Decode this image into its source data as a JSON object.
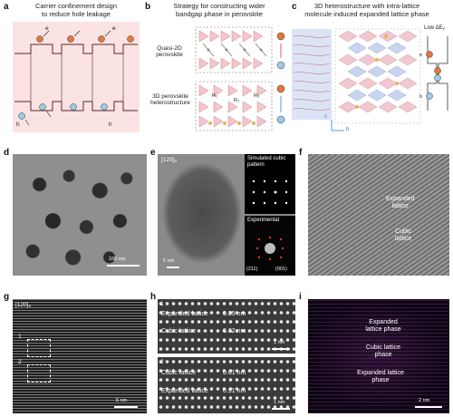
{
  "panels": {
    "a": {
      "letter": "a",
      "title_l1": "Carrier confinement design",
      "title_l2": "to reduce hole leakage",
      "e": "e",
      "h": "h"
    },
    "b": {
      "letter": "b",
      "title_l1": "Strategy for constructing wider",
      "title_l2": "bandgap phase in perovskite",
      "label_q2d_l1": "Quasi-2D",
      "label_q2d_l2": "perovskite",
      "label_3d_l1": "3D perovskite",
      "label_3d_l2": "heterostructure",
      "r1": "R₁",
      "r2": "R₂",
      "r3": "R₃",
      "e": "e",
      "h": "h"
    },
    "c": {
      "letter": "c",
      "title_l1": "3D heterostructure with intra-lattice",
      "title_l2": "molecule induced expanded lattice phase",
      "low_eg": "Low ΔEᵧ",
      "axis_c": "c",
      "axis_b": "b",
      "e": "e",
      "h": "h"
    },
    "d": {
      "letter": "d",
      "scale": "100 nm"
    },
    "e": {
      "letter": "e",
      "zone": "[120]ₐ",
      "sim_l1": "Simulated cubic",
      "sim_l2": "pattern",
      "exp": "Experimental",
      "idx1": "(211)",
      "idx2": "(001)",
      "scale": "5 nm"
    },
    "f": {
      "letter": "f",
      "expanded_l1": "Expanded",
      "expanded_l2": "lattice",
      "cubic_l1": "Cubic",
      "cubic_l2": "lattice"
    },
    "g": {
      "letter": "g",
      "zone": "[120]ₐ",
      "box1": "1",
      "box2": "2",
      "scale": "5 nm"
    },
    "h": {
      "letter": "h",
      "top_index": "1",
      "top_expanded": "Expanded lattice",
      "top_expanded_val": "0.85 nm",
      "top_cubic": "Cubic lattice",
      "top_cubic_val": "0.62 nm",
      "top_scale": "1 nm",
      "bot_index": "2",
      "bot_cubic": "Cubic lattice",
      "bot_cubic_val": "0.61 nm",
      "bot_expanded": "Expanded lattice",
      "bot_expanded_val": "0.91 nm",
      "bot_scale": "1 nm"
    },
    "i": {
      "letter": "i",
      "expanded1_l1": "Expanded",
      "expanded1_l2": "lattice phase",
      "cubic_l1": "Cubic lattice",
      "cubic_l2": "phase",
      "expanded2_l1": "Expanded lattice",
      "expanded2_l2": "phase",
      "scale": "2 nm"
    }
  }
}
